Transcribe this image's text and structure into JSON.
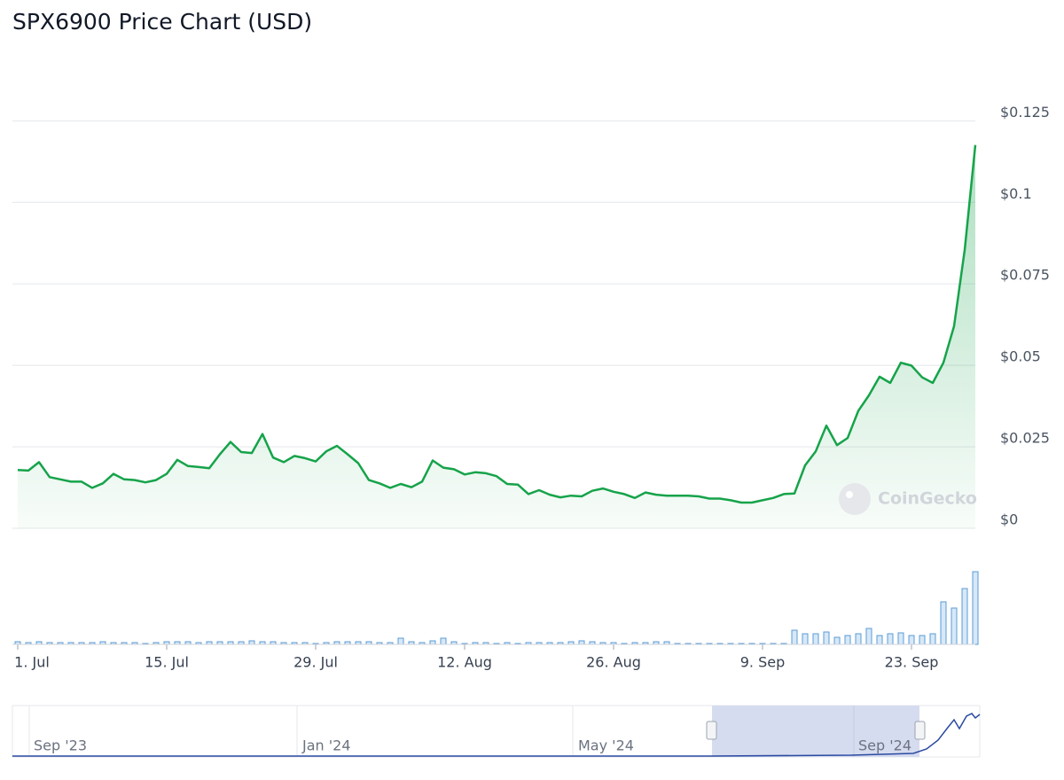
{
  "chart_data": {
    "type": "line",
    "title": "SPX6900 Price Chart (USD)",
    "watermark": "CoinGecko",
    "x": [
      0,
      1,
      2,
      3,
      4,
      5,
      6,
      7,
      8,
      9,
      10,
      11,
      12,
      13,
      14,
      15,
      16,
      17,
      18,
      19,
      20,
      21,
      22,
      23,
      24,
      25,
      26,
      27,
      28,
      29,
      30,
      31,
      32,
      33,
      34,
      35,
      36,
      37,
      38,
      39,
      40,
      41,
      42,
      43,
      44,
      45,
      46,
      47,
      48,
      49,
      50,
      51,
      52,
      53,
      54,
      55,
      56,
      57,
      58,
      59,
      60,
      61,
      62,
      63,
      64,
      65,
      66,
      67,
      68,
      69,
      70,
      71,
      72,
      73,
      74,
      75,
      76,
      77,
      78,
      79,
      80,
      81,
      82,
      83,
      84,
      85,
      86,
      87,
      88,
      89,
      90
    ],
    "xlim": [
      0,
      90
    ],
    "xticks": [
      {
        "value": 0,
        "label": "1. Jul"
      },
      {
        "value": 14,
        "label": "15. Jul"
      },
      {
        "value": 28,
        "label": "29. Jul"
      },
      {
        "value": 42,
        "label": "12. Aug"
      },
      {
        "value": 56,
        "label": "26. Aug"
      },
      {
        "value": 70,
        "label": "9. Sep"
      },
      {
        "value": 84,
        "label": "23. Sep"
      }
    ],
    "ylim": [
      0,
      0.1425
    ],
    "yticks": [
      {
        "value": 0,
        "label": "$0"
      },
      {
        "value": 0.025,
        "label": "$0.025"
      },
      {
        "value": 0.05,
        "label": "$0.05"
      },
      {
        "value": 0.075,
        "label": "$0.075"
      },
      {
        "value": 0.1,
        "label": "$0.1"
      },
      {
        "value": 0.125,
        "label": "$0.125"
      }
    ],
    "grid": true,
    "series": [
      {
        "color": "#16a34a",
        "values": [
          0.0179,
          0.0177,
          0.0203,
          0.0157,
          0.015,
          0.0143,
          0.0143,
          0.0124,
          0.0138,
          0.0167,
          0.015,
          0.0148,
          0.0141,
          0.0148,
          0.0167,
          0.021,
          0.0191,
          0.0188,
          0.0184,
          0.0227,
          0.0265,
          0.0234,
          0.0231,
          0.0289,
          0.0217,
          0.0203,
          0.0222,
          0.0215,
          0.0205,
          0.0236,
          0.0253,
          0.0227,
          0.02,
          0.0148,
          0.0138,
          0.0124,
          0.0136,
          0.0126,
          0.0143,
          0.0208,
          0.0186,
          0.0181,
          0.0165,
          0.0172,
          0.0169,
          0.016,
          0.0136,
          0.0134,
          0.0105,
          0.0117,
          0.0103,
          0.0095,
          0.01,
          0.0098,
          0.0115,
          0.0122,
          0.0112,
          0.0105,
          0.0093,
          0.011,
          0.0103,
          0.01,
          0.01,
          0.01,
          0.0098,
          0.0091,
          0.0091,
          0.0086,
          0.0079,
          0.0079,
          0.0086,
          0.0093,
          0.0105,
          0.0107,
          0.0193,
          0.0236,
          0.0315,
          0.0255,
          0.0277,
          0.036,
          0.0408,
          0.0465,
          0.0446,
          0.0508,
          0.0499,
          0.0463,
          0.0446,
          0.0508,
          0.062,
          0.0854,
          0.1176
        ]
      }
    ],
    "volume": {
      "color": "#5b9bd5",
      "values": [
        3,
        2,
        3,
        2,
        2,
        2,
        2,
        2,
        3,
        2,
        2,
        2,
        1,
        2,
        3,
        3,
        3,
        2,
        3,
        3,
        3,
        3,
        4,
        3,
        3,
        2,
        2,
        2,
        1,
        2,
        3,
        3,
        3,
        3,
        2,
        2,
        7,
        3,
        2,
        4,
        7,
        3,
        1,
        2,
        2,
        1,
        2,
        1,
        2,
        2,
        2,
        2,
        3,
        4,
        3,
        2,
        2,
        1,
        2,
        2,
        3,
        3,
        1,
        1,
        1,
        1,
        1,
        1,
        1,
        1,
        1,
        1,
        1,
        16,
        12,
        12,
        14,
        8,
        10,
        12,
        18,
        10,
        12,
        13,
        10,
        10,
        12,
        48,
        41,
        63,
        82
      ]
    },
    "navigator_labels": [
      "Sep '23",
      "Jan '24",
      "May '24",
      "Sep '24"
    ]
  }
}
